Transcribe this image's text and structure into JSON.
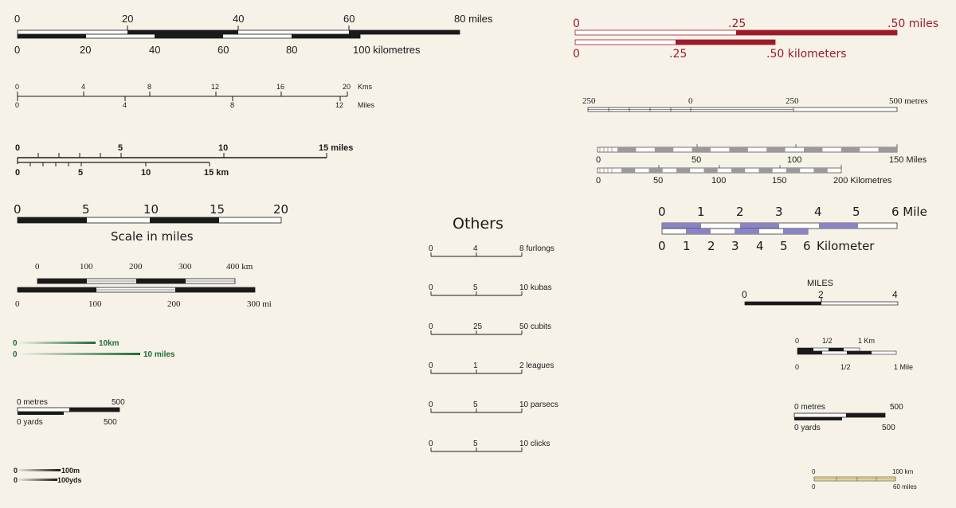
{
  "colors": {
    "background": "#f6f2e7",
    "ink": "#1a1a1a",
    "maroon": "#9b1b2a",
    "green": "#1e6b3a",
    "purple": "#8a83c4",
    "grey": "#9a9a9a",
    "yellow": "#f2eca0"
  },
  "bars": {
    "b1": {
      "top": [
        "0",
        "20",
        "40",
        "60",
        "80 miles"
      ],
      "bottom": [
        "0",
        "20",
        "40",
        "60",
        "80",
        "100 kilometres"
      ]
    },
    "b2": {
      "top": [
        "0",
        "4",
        "8",
        "12",
        "16",
        "20"
      ],
      "top_unit": "Kms",
      "bottom": [
        "0",
        "4",
        "8",
        "12"
      ],
      "bottom_unit": "Miles"
    },
    "b3": {
      "top": [
        "0",
        "5",
        "10",
        "15 miles"
      ],
      "bottom": [
        "0",
        "5",
        "10",
        "15 km"
      ]
    },
    "b4": {
      "ticks": [
        "0",
        "5",
        "10",
        "15",
        "20"
      ],
      "caption": "Scale in miles"
    },
    "b5": {
      "top": [
        "0",
        "100",
        "200",
        "300",
        "400 km"
      ],
      "bottom": [
        "0",
        "100",
        "200",
        "300 mi"
      ]
    },
    "b6": {
      "top": [
        "0",
        "10km"
      ],
      "bottom": [
        "0",
        "10 miles"
      ]
    },
    "b7": {
      "top": [
        "0 metres",
        "500"
      ],
      "bottom": [
        "0 yards",
        "500"
      ]
    },
    "b8": {
      "top": [
        "0",
        "100m"
      ],
      "bottom": [
        "0",
        "100yds"
      ]
    },
    "r1": {
      "top": [
        "0",
        ".25",
        ".50 miles"
      ],
      "bottom": [
        "0",
        ".25",
        ".50 kilometers"
      ]
    },
    "r2": {
      "labels": [
        "250",
        "0",
        "250",
        "500 metres"
      ]
    },
    "r3": {
      "top": [
        "0",
        "50",
        "100",
        "150 Miles"
      ],
      "bottom": [
        "0",
        "50",
        "100",
        "150",
        "200 Kilometres"
      ]
    },
    "r4": {
      "top": [
        "0",
        "1",
        "2",
        "3",
        "4",
        "5",
        "6 Mile"
      ],
      "bottom": [
        "0",
        "1",
        "2",
        "3",
        "4",
        "5",
        "6",
        "Kilometer"
      ]
    },
    "r5": {
      "title": "MILES",
      "labels": [
        "0",
        "2",
        "4"
      ]
    },
    "r6": {
      "top": [
        "0",
        "1/2",
        "1 Km"
      ],
      "bottom": [
        "0",
        "1/2",
        "1 Mile"
      ]
    },
    "r7": {
      "top": [
        "0 metres",
        "500"
      ],
      "bottom": [
        "0 yards",
        "500"
      ]
    },
    "r8": {
      "top": [
        "0",
        "100 km"
      ],
      "bottom": [
        "0",
        "60 miles"
      ]
    }
  },
  "others": {
    "title": "Others",
    "rows": [
      {
        "mid": "4",
        "end": "8 furlongs"
      },
      {
        "mid": "5",
        "end": "10 kubas"
      },
      {
        "mid": "25",
        "end": "50 cubits"
      },
      {
        "mid": "1",
        "end": "2 leagues"
      },
      {
        "mid": "5",
        "end": "10 parsecs"
      },
      {
        "mid": "5",
        "end": "10 clicks"
      }
    ],
    "zero": "0"
  }
}
